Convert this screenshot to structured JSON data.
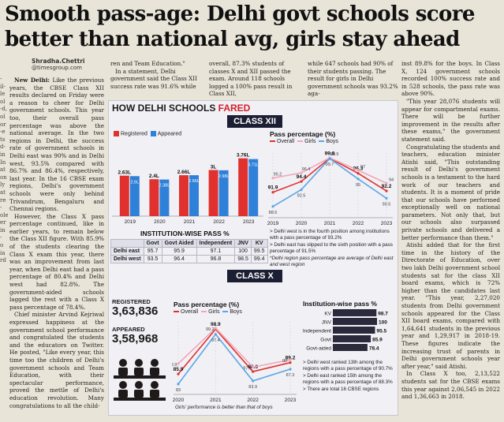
{
  "headline": {
    "line1": "Smooth pass-age: Delhi govt schools score",
    "line2": "better than national avg, girls stay ahead"
  },
  "byline": {
    "author": "Shradha.Chettri",
    "handle": "@timesgroup.com"
  },
  "col1": {
    "dateline": "New Delhi:",
    "p1": "Like the previous years, the CBSE Class XII results declared on Friday were a reason to cheer for Delhi government schools. This year too, their overall pass percentage was above the national average. In the two regions in Delhi, the success rate of government schools in Delhi east was 90% and in Delhi west, 93.5% compared with 86.7% and 86.4%, respectively, last year. In the 16 CBSE exam regions, Delhi's government schools were only behind Trivandrum, Bengaluru and Chennai regions.",
    "p2": "However, the Class X pass percentage continued, like in earlier years, to remain below the Class XII figure. With 85.9% of the students clearing the Class X exam this year, there was an improvement from last year, when Delhi east had a pass percentage of 80.4% and Delhi west had 82.8%. The government-aided schools lagged the rest with a Class X pass percentage of 78.4%.",
    "p3": "Chief minister Arvind Kejriwal expressed happiness at the government school performance and congratulated the students and the educators on Twitter. He posted, \"Like every year, this time too the children of Delhi's government schools and Team Education, with their spectacular performance, proved the mettle of Delhi's education revolution. Many congratulations to all the child-"
  },
  "strip2": {
    "line1": "ren and Team Education.\"",
    "p": "In a statement, Delhi government said the Class XII success rate was 91.6% while"
  },
  "strip3": {
    "p": "overall, 87.3% students of classes X and XII passed the exam. Around 118 schools logged a 100% pass result in Class XII,"
  },
  "strip4": {
    "p": "while 647 schools had 90% of their students passing. The result for girls in Delhi government schools was 93.2% aga-"
  },
  "col5": {
    "p1": "inst 89.8% for the boys. In Class X, 124 government schools recorded 100% success rate and in 528 schools, the pass rate was above 90%.",
    "p2": "\"This year 28,076 students will appear for compartmental exams. There will be further improvement in the results after these exams,\" the government statement said.",
    "p3": "Congratulating the students and teachers, education minister Atishi said, \"This outstanding result of Delhi's government schools is a testament to the hard work of our teachers and students. It is a moment of pride that our schools have performed exceptionally well on national parameters. Not only that, but our schools also surpassed private schools and delivered a better performance than them.\"",
    "p4": "Atishi added that for the first time in the history of the Directorate of Education, over two lakh Delhi government school students sat for the class XII board exams, which is 72% higher than the candidates last year. \"This year, 2,27,020 students from Delhi government schools appeared for the Class XII board exams, compared with 1,64,641 students in the previous year and 1,29,917 in 2018-19. These figures indicate the increasing trust of parents in Delhi government schools year after year,\" said Atishi.",
    "p5": "In Class X too, 2,13,522 students sat for the CBSE exams this year against 2,06,545 in 2022 and 1,36,663 in 2018."
  },
  "edge_fragments": [
    "-",
    "il-",
    "le",
    "ol",
    "-d,",
    "ol",
    "or",
    "-e",
    "ts",
    "d-",
    "in",
    "In",
    "at",
    "on",
    "ly",
    "at",
    "re",
    "-",
    "ole",
    "er",
    "in",
    "-",
    "o",
    "ia",
    "rd"
  ],
  "graphic": {
    "title_prefix": "HOW DELHI SCHOOLS ",
    "title_accent": "FARED",
    "class12_label": "CLASS XII",
    "class10_label": "CLASS X",
    "legend_registered": "Registered",
    "legend_appeared": "Appeared",
    "pass_title": "Pass percentage (%)",
    "legend_overall": "Overall",
    "legend_girls": "Girls",
    "legend_boys": "Boys",
    "inst_title": "INSTITUTION-WISE PASS %",
    "inst_headers": [
      "",
      "Govt",
      "Govt Aided",
      "Independent",
      "JNV",
      "KV"
    ],
    "inst_rows": [
      [
        "Delhi east",
        "95.7",
        "95.9",
        "97.1",
        "100",
        "99.5"
      ],
      [
        "Delhi west",
        "93.5",
        "96.4",
        "96.8",
        "98.5",
        "99.4"
      ]
    ],
    "notes12": [
      "> Delhi west is in the fourth position among institutions with a pass percentage of 93.2%",
      "> Delhi east has slipped to the sixth position with a pass percentage of 91.5%",
      "*Delhi region pass percentage are average of Delhi east and west region"
    ],
    "registered_label": "REGISTERED",
    "registered_value": "3,63,836",
    "appeared_label": "APPEARED",
    "appeared_value": "3,58,968",
    "girls_note": "Girls' performance is better than that of boys",
    "inst10_title": "Institution-wise pass %",
    "notes10": [
      "> Delhi west ranked 13th among the regions with a pass percentage of 90.7%",
      "> Delhi east ranked 15th among the regions with a pass percentage of 88.3%",
      "> There are total 16 CBSE regions"
    ]
  },
  "chart_data": [
    {
      "type": "bar",
      "title": "Class XII Registered vs Appeared",
      "categories": [
        "2019",
        "2020",
        "2021",
        "2022",
        "2023"
      ],
      "series": [
        {
          "name": "Registered",
          "values": [
            2.63,
            2.4,
            2.66,
            3.0,
            3.76
          ],
          "labels": [
            "2.63L",
            "2.4L",
            "2.66L",
            "3L",
            "3.76L"
          ]
        },
        {
          "name": "Appeared",
          "values": [
            2.6,
            2.38,
            2.66,
            2.98,
            3.71
          ],
          "labels": [
            "2.6L",
            "2.38L",
            "2.66L",
            "2.98L",
            "3.71L"
          ]
        }
      ],
      "ylim": [
        0,
        4
      ]
    },
    {
      "type": "line",
      "title": "Pass percentage (%)",
      "x": [
        "2019",
        "2020",
        "2021",
        "2022",
        "2023"
      ],
      "series": [
        {
          "name": "Overall",
          "values": [
            91.9,
            94.4,
            99.8,
            96.3,
            92.2
          ]
        },
        {
          "name": "Girls",
          "values": [
            95.2,
            96.4,
            99.9,
            97.0,
            94.0
          ]
        },
        {
          "name": "Boys",
          "values": [
            88.6,
            92.5,
            99.7,
            95.0,
            90.5
          ]
        }
      ],
      "labels": {
        "Overall": [
          "91.9",
          "94.4",
          "99.8",
          "96.3",
          "92.2"
        ],
        "Girls": [
          "95.2",
          "96.4",
          "99.9",
          "97",
          "94"
        ],
        "Boys": [
          "88.6",
          "92.5",
          "99.7",
          "95",
          "90.5"
        ]
      },
      "ylim": [
        86,
        101
      ]
    },
    {
      "type": "line",
      "title": "Class X Pass percentage (%)",
      "x": [
        "2020",
        "2021",
        "2022",
        "2023"
      ],
      "series": [
        {
          "name": "Overall",
          "values": [
            85.9,
            98.9,
            86.6,
            89.2
          ]
        },
        {
          "name": "Girls",
          "values": [
            88.9,
            99.2,
            87.9,
            90.0
          ]
        },
        {
          "name": "Boys",
          "values": [
            83.0,
            97.4,
            83.9,
            87.3
          ]
        }
      ],
      "labels": {
        "Overall": [
          "85.9",
          "98.9",
          "86.6",
          "89.2"
        ],
        "Girls": [
          "88.9",
          "99.2",
          "87.9",
          "90"
        ],
        "Boys": [
          "83",
          "97.4",
          "83.9",
          "87.3"
        ]
      },
      "ylim": [
        80,
        101
      ]
    },
    {
      "type": "bar",
      "title": "Institution-wise pass %",
      "categories": [
        "KV",
        "JNV",
        "Independent",
        "Govt",
        "Govt-aided"
      ],
      "values": [
        98.7,
        100,
        95.5,
        85.9,
        78.4
      ],
      "xlim": [
        0,
        100
      ]
    }
  ],
  "colors": {
    "registered": "#e0312f",
    "appeared": "#2f80d8",
    "overall": "#e0312f",
    "girls": "#f0a8b8",
    "boys": "#5aa6e6",
    "band": "#1c1f33"
  }
}
